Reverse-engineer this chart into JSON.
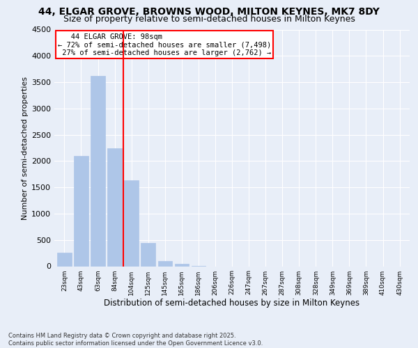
{
  "title": "44, ELGAR GROVE, BROWNS WOOD, MILTON KEYNES, MK7 8DY",
  "subtitle": "Size of property relative to semi-detached houses in Milton Keynes",
  "xlabel": "Distribution of semi-detached houses by size in Milton Keynes",
  "ylabel": "Number of semi-detached properties",
  "bar_labels": [
    "23sqm",
    "43sqm",
    "63sqm",
    "84sqm",
    "104sqm",
    "125sqm",
    "145sqm",
    "165sqm",
    "186sqm",
    "206sqm",
    "226sqm",
    "247sqm",
    "267sqm",
    "287sqm",
    "308sqm",
    "328sqm",
    "349sqm",
    "369sqm",
    "389sqm",
    "410sqm",
    "430sqm"
  ],
  "bar_values": [
    253,
    2100,
    3620,
    2240,
    1640,
    440,
    100,
    45,
    10,
    0,
    0,
    0,
    0,
    0,
    0,
    0,
    0,
    0,
    0,
    0,
    0
  ],
  "bar_color": "#aec6e8",
  "bar_edgecolor": "#aec6e8",
  "vline_color": "red",
  "property_label": "44 ELGAR GROVE: 98sqm",
  "smaller_pct": "72% of semi-detached houses are smaller (7,498)",
  "larger_pct": "27% of semi-detached houses are larger (2,762)",
  "ylim": [
    0,
    4500
  ],
  "yticks": [
    0,
    500,
    1000,
    1500,
    2000,
    2500,
    3000,
    3500,
    4000,
    4500
  ],
  "bg_color": "#e8eef8",
  "plot_bg_color": "#e8eef8",
  "footer_line1": "Contains HM Land Registry data © Crown copyright and database right 2025.",
  "footer_line2": "Contains public sector information licensed under the Open Government Licence v3.0.",
  "title_fontsize": 10,
  "subtitle_fontsize": 9
}
